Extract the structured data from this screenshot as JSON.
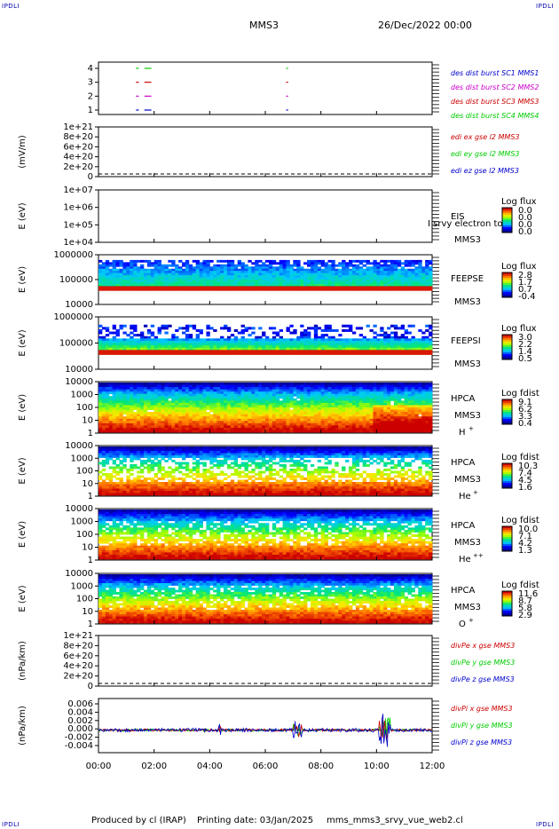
{
  "header": {
    "corner_label": "IPDLI",
    "title": "MMS3",
    "date": "26/Dec/2022 00:00"
  },
  "footer": {
    "produced_by": "Produced by cl (IRAP)",
    "printing_date": "Printing date: 03/Jan/2025",
    "filename": "mms_mms3_srvy_vue_web2.cl"
  },
  "colors": {
    "fg": "#000000",
    "legend_blue": "#0000cc",
    "legend_red": "#cc0000",
    "legend_green": "#00cc00",
    "legend_magenta": "#cc00cc",
    "corner": "#0000aa"
  },
  "chart_data": {
    "type": "mixed",
    "x_tick_labels": [
      "00:00",
      "02:00",
      "04:00",
      "06:00",
      "08:00",
      "10:00",
      "12:00"
    ],
    "xlim_hours": [
      0,
      12
    ],
    "panels": [
      {
        "id": "burst",
        "type": "scatter",
        "ylabel": "",
        "y_ticks": [
          "4",
          "3",
          "2",
          "1"
        ],
        "legend": [
          {
            "text": "des dist burst SC1 MMS1",
            "color": "#0000cc"
          },
          {
            "text": "des dist burst SC2 MMS2",
            "color": "#cc00cc"
          },
          {
            "text": "des dist burst SC3 MMS3",
            "color": "#cc0000"
          },
          {
            "text": "des dist burst SC4 MMS4",
            "color": "#00cc00"
          }
        ],
        "segments": [
          {
            "level": 4,
            "color": "#00cc00",
            "start_h": 1.35,
            "end_h": 1.45
          },
          {
            "level": 4,
            "color": "#00cc00",
            "start_h": 1.65,
            "end_h": 1.9
          },
          {
            "level": 4,
            "color": "#00cc00",
            "start_h": 6.75,
            "end_h": 6.82
          },
          {
            "level": 3,
            "color": "#cc0000",
            "start_h": 1.35,
            "end_h": 1.45
          },
          {
            "level": 3,
            "color": "#cc0000",
            "start_h": 1.65,
            "end_h": 1.9
          },
          {
            "level": 3,
            "color": "#cc0000",
            "start_h": 6.75,
            "end_h": 6.82
          },
          {
            "level": 2,
            "color": "#cc00cc",
            "start_h": 1.35,
            "end_h": 1.45
          },
          {
            "level": 2,
            "color": "#cc00cc",
            "start_h": 1.65,
            "end_h": 1.9
          },
          {
            "level": 2,
            "color": "#cc00cc",
            "start_h": 6.75,
            "end_h": 6.82
          },
          {
            "level": 1,
            "color": "#0000cc",
            "start_h": 1.35,
            "end_h": 1.45
          },
          {
            "level": 1,
            "color": "#0000cc",
            "start_h": 1.65,
            "end_h": 1.9
          },
          {
            "level": 1,
            "color": "#0000cc",
            "start_h": 6.75,
            "end_h": 6.82
          }
        ]
      },
      {
        "id": "edi",
        "type": "line",
        "ylabel": "(mV/m)",
        "y_ticks": [
          "1e+21",
          "8e+20",
          "6e+20",
          "4e+20",
          "2e+20",
          "0"
        ],
        "legend": [
          {
            "text": "edi ex gse l2 MMS3",
            "color": "#cc0000"
          },
          {
            "text": "edi ey gse l2 MMS3",
            "color": "#00cc00"
          },
          {
            "text": "edi ez gse l2 MMS3",
            "color": "#0000cc"
          }
        ]
      },
      {
        "id": "eis",
        "type": "heatmap",
        "ylabel": "E (eV)",
        "y_ticks": [
          "1e+07",
          "1e+06",
          "1e+05",
          "1e+04"
        ],
        "right_labels": [
          "EIS",
          "MMS3"
        ],
        "overlay_text": "I srvy electron to",
        "colorbar": {
          "title": "Log flux",
          "ticks": [
            "0.0",
            "0.0",
            "0.0",
            "0.0"
          ]
        }
      },
      {
        "id": "feepse",
        "type": "heatmap",
        "ylabel": "E (eV)",
        "y_ticks": [
          "1000000",
          "100000",
          "10000"
        ],
        "right_labels": [
          "FEEPSE",
          "MMS3"
        ],
        "colorbar": {
          "title": "Log flux",
          "ticks": [
            "2.8",
            "1.7",
            "0.7",
            "-0.4"
          ]
        }
      },
      {
        "id": "feepsi",
        "type": "heatmap",
        "ylabel": "E (eV)",
        "y_ticks": [
          "1000000",
          "100000",
          "10000"
        ],
        "right_labels": [
          "FEEPSI",
          "MMS3"
        ],
        "colorbar": {
          "title": "Log flux",
          "ticks": [
            "3.0",
            "2.2",
            "1.4",
            "0.5"
          ]
        }
      },
      {
        "id": "hpca_h",
        "type": "heatmap",
        "ylabel": "E (eV)",
        "y_ticks": [
          "10000",
          "1000",
          "100",
          "10",
          "1"
        ],
        "right_labels": [
          "HPCA",
          "MMS3"
        ],
        "species": "H",
        "species_sup": "+",
        "colorbar": {
          "title": "Log fdist",
          "ticks": [
            "9.1",
            "6.2",
            "3.3",
            "0.4"
          ]
        }
      },
      {
        "id": "hpca_he1",
        "type": "heatmap",
        "ylabel": "E (eV)",
        "y_ticks": [
          "10000",
          "1000",
          "100",
          "10",
          "1"
        ],
        "right_labels": [
          "HPCA",
          "MMS3"
        ],
        "species": "He",
        "species_sup": "+",
        "colorbar": {
          "title": "Log fdist",
          "ticks": [
            "10.3",
            "7.4",
            "4.5",
            "1.6"
          ]
        }
      },
      {
        "id": "hpca_he2",
        "type": "heatmap",
        "ylabel": "E (eV)",
        "y_ticks": [
          "10000",
          "1000",
          "100",
          "10",
          "1"
        ],
        "right_labels": [
          "HPCA",
          "MMS3"
        ],
        "species": "He",
        "species_sup": "++",
        "colorbar": {
          "title": "Log fdist",
          "ticks": [
            "10.0",
            "7.1",
            "4.2",
            "1.3"
          ]
        }
      },
      {
        "id": "hpca_o",
        "type": "heatmap",
        "ylabel": "E (eV)",
        "y_ticks": [
          "10000",
          "1000",
          "100",
          "10",
          "1"
        ],
        "right_labels": [
          "HPCA",
          "MMS3"
        ],
        "species": "O",
        "species_sup": "+",
        "colorbar": {
          "title": "Log fdist",
          "ticks": [
            "11.6",
            "8.7",
            "5.8",
            "2.9"
          ]
        }
      },
      {
        "id": "divpe",
        "type": "line",
        "ylabel": "(nPa/km)",
        "y_ticks": [
          "1e+21",
          "8e+20",
          "6e+20",
          "4e+20",
          "2e+20",
          "0"
        ],
        "legend": [
          {
            "text": "divPe x gse MMS3",
            "color": "#cc0000"
          },
          {
            "text": "divPe y gse MMS3",
            "color": "#00cc00"
          },
          {
            "text": "divPe z gse MMS3",
            "color": "#0000cc"
          }
        ]
      },
      {
        "id": "divpi",
        "type": "line",
        "ylabel": "(nPa/km)",
        "y_ticks": [
          "0.006",
          "0.004",
          "0.002",
          "0.000",
          "-0.002",
          "-0.004"
        ],
        "ylim": [
          -0.005,
          0.007
        ],
        "legend": [
          {
            "text": "divPi x gse MMS3",
            "color": "#cc0000"
          },
          {
            "text": "divPi y gse MMS3",
            "color": "#00cc00"
          },
          {
            "text": "divPi z gse MMS3",
            "color": "#0000cc"
          }
        ]
      }
    ]
  }
}
